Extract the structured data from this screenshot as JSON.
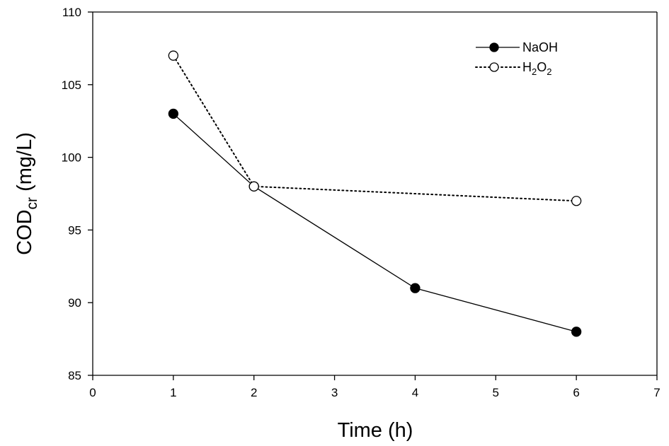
{
  "chart_data": {
    "type": "line",
    "xlabel": "Time (h)",
    "ylabel": {
      "base": "COD",
      "sub": "cr",
      "rest": " (mg/L)"
    },
    "xlim": [
      0,
      7
    ],
    "ylim": [
      85,
      110
    ],
    "xticks": [
      "0",
      "1",
      "2",
      "3",
      "4",
      "5",
      "6",
      "7"
    ],
    "yticks": [
      "85",
      "90",
      "95",
      "100",
      "105",
      "110"
    ],
    "grid": false,
    "legend_position": "top-right",
    "series": [
      {
        "name": "NaOH",
        "marker": "filled-circle",
        "line": "solid",
        "x": [
          1,
          2,
          4,
          6
        ],
        "y": [
          103,
          98,
          91,
          88
        ]
      },
      {
        "name": {
          "p1": "H",
          "s1": "2",
          "p2": "O",
          "s2": "2"
        },
        "marker": "open-circle",
        "line": "dotted",
        "x": [
          1,
          2,
          6
        ],
        "y": [
          107,
          98,
          97
        ]
      }
    ],
    "colors": {
      "line": "#000000",
      "open_marker_fill": "#ffffff"
    }
  }
}
